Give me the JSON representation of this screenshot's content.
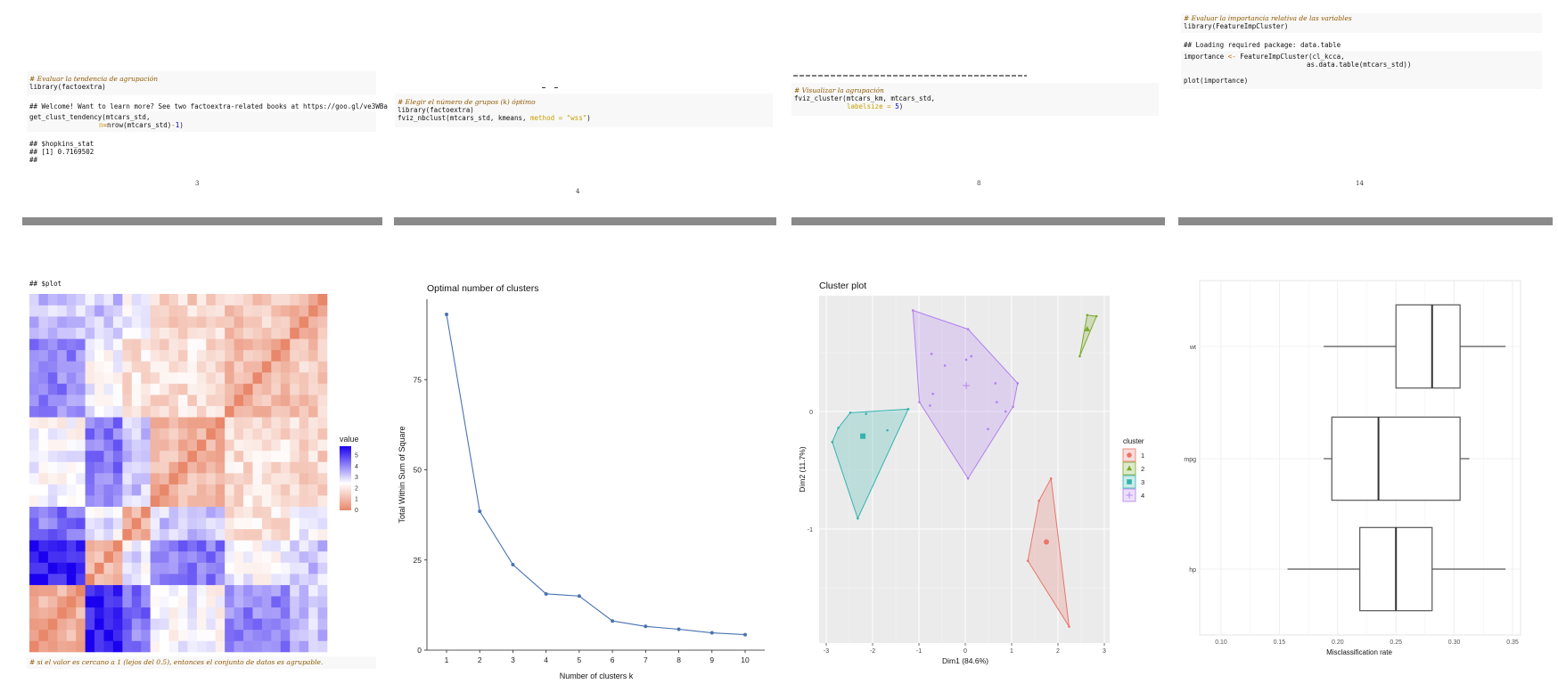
{
  "pages": [
    {
      "number": "3",
      "block1": {
        "comment": "# Evaluar la tendencia de agrupación",
        "line2": "library(factoextra)"
      },
      "output1": "## Welcome! Want to learn more? See two factoextra-related books at https://goo.gl/ve3WBa",
      "block2": {
        "line1": "get_clust_tendency(mtcars_std,",
        "arg": "n",
        "eq": "=",
        "rest": "nrow(mtcars_std)",
        "minus": "-",
        "num": "1",
        "close": ")"
      },
      "output2": [
        "## $hopkins_stat",
        "## [1] 0.7169502",
        "##"
      ],
      "plot_header": "## $plot",
      "caption": "# si el valor es cercano a 1 (lejos del 0.5), entonces el conjunto de datos es agrupable."
    },
    {
      "number": "4",
      "block": {
        "comment": "# Elegir el número de grupos (k) óptimo",
        "line2": "library(factoextra)",
        "line3a": "fviz_nbclust(mtcars_std, kmeans, ",
        "arg": "method = \"wss\"",
        "line3b": ")"
      }
    },
    {
      "number": "8",
      "block": {
        "comment": "# Visualizar la agrupación",
        "line2": "fviz_cluster(mtcars_km, mtcars_std,",
        "arg": "labelsize = ",
        "num": "5",
        "close": ")"
      }
    },
    {
      "number": "14",
      "block1": {
        "comment": "# Evaluar la importancia relativa de las variables",
        "line2": "library(FeatureImpCluster)"
      },
      "output1": "## Loading required package: data.table",
      "block2": {
        "line1a": "importance ",
        "op": "<-",
        "line1b": " FeatureImpCluster(cl_kcca,",
        "line2": "as.data.table(mtcars_std))",
        "line3": "plot(importance)"
      }
    }
  ],
  "chart_data": [
    {
      "type": "heatmap",
      "title": "",
      "legend_title": "value",
      "legend_ticks": [
        "0",
        "1",
        "2",
        "3",
        "4",
        "5"
      ],
      "range": [
        0,
        5.5
      ],
      "colors": {
        "low": "#e8876a",
        "mid": "#ffffff",
        "high": "#1a00ee"
      },
      "group_sizes": [
        6,
        4,
        3,
        8,
        7,
        4
      ],
      "block_means": [
        [
          0.9,
          5.2,
          4.0,
          2.3,
          3.8,
          3.0
        ],
        [
          5.2,
          0.9,
          2.6,
          4.0,
          2.4,
          3.0
        ],
        [
          4.0,
          2.6,
          0.9,
          3.0,
          1.8,
          2.3
        ],
        [
          2.3,
          4.0,
          3.0,
          0.9,
          1.7,
          1.5
        ],
        [
          3.8,
          2.4,
          1.8,
          1.7,
          0.9,
          1.3
        ],
        [
          3.0,
          3.0,
          2.3,
          1.5,
          1.3,
          0.9
        ]
      ]
    },
    {
      "type": "line",
      "title": "Optimal number of clusters",
      "xlabel": "Number of clusters k",
      "ylabel": "Total Within Sum of Square",
      "x": [
        1,
        2,
        3,
        4,
        5,
        6,
        7,
        8,
        9,
        10
      ],
      "values": [
        93.1,
        38.5,
        23.7,
        15.6,
        15.0,
        8.1,
        6.6,
        5.8,
        4.8,
        4.3
      ],
      "xticks": [
        "1",
        "2",
        "3",
        "4",
        "5",
        "6",
        "7",
        "8",
        "9",
        "10"
      ],
      "yticks": [
        "0",
        "25",
        "50",
        "75"
      ],
      "ylim": [
        0,
        95
      ],
      "color": "#4a72b0"
    },
    {
      "type": "scatter",
      "title": "Cluster plot",
      "xlabel": "Dim1 (84.6%)",
      "ylabel": "Dim2 (11.7%)",
      "xticks": [
        "-3",
        "-2",
        "-1",
        "0",
        "1",
        "2",
        "3"
      ],
      "yticks": [
        "0",
        "-1"
      ],
      "xlim": [
        -3.1,
        3.15
      ],
      "ylim": [
        -1.97,
        0.98
      ],
      "legend_title": "cluster",
      "legend_position": "right",
      "clusters": [
        {
          "name": "1",
          "color": "#e8766b",
          "shape": "circle",
          "hull": [
            [
              1.85,
              -0.57
            ],
            [
              2.24,
              -1.83
            ],
            [
              1.35,
              -1.27
            ],
            [
              1.59,
              -0.76
            ]
          ],
          "points": [
            [
              1.85,
              -0.57
            ],
            [
              1.59,
              -0.76
            ],
            [
              1.35,
              -1.27
            ],
            [
              2.24,
              -1.83
            ]
          ],
          "center": [
            1.75,
            -1.11
          ]
        },
        {
          "name": "2",
          "color": "#7caa2d",
          "shape": "triangle",
          "hull": [
            [
              2.63,
              0.82
            ],
            [
              2.83,
              0.81
            ],
            [
              2.47,
              0.47
            ]
          ],
          "points": [
            [
              2.63,
              0.82
            ],
            [
              2.83,
              0.81
            ],
            [
              2.47,
              0.47
            ]
          ],
          "center": [
            2.63,
            0.7
          ]
        },
        {
          "name": "3",
          "color": "#35b2ad",
          "shape": "square",
          "hull": [
            [
              -2.48,
              -0.01
            ],
            [
              -1.23,
              0.02
            ],
            [
              -2.32,
              -0.91
            ],
            [
              -2.87,
              -0.26
            ],
            [
              -2.74,
              -0.14
            ]
          ],
          "points": [
            [
              -2.48,
              -0.01
            ],
            [
              -2.14,
              -0.02
            ],
            [
              -1.23,
              0.02
            ],
            [
              -1.68,
              -0.16
            ],
            [
              -2.32,
              -0.91
            ],
            [
              -2.87,
              -0.26
            ],
            [
              -2.74,
              -0.14
            ]
          ],
          "center": [
            -2.21,
            -0.21
          ]
        },
        {
          "name": "4",
          "color": "#b27ff0",
          "shape": "cross",
          "hull": [
            [
              -1.13,
              0.86
            ],
            [
              0.06,
              0.7
            ],
            [
              1.13,
              0.24
            ],
            [
              1.03,
              0.04
            ],
            [
              0.06,
              -0.57
            ],
            [
              -0.99,
              0.08
            ]
          ],
          "points": [
            [
              -1.13,
              0.86
            ],
            [
              0.06,
              0.7
            ],
            [
              1.13,
              0.24
            ],
            [
              1.03,
              0.04
            ],
            [
              0.06,
              -0.57
            ],
            [
              -0.99,
              0.08
            ],
            [
              -0.73,
              0.49
            ],
            [
              -0.44,
              0.39
            ],
            [
              0.02,
              0.44
            ],
            [
              0.13,
              0.47
            ],
            [
              0.65,
              0.24
            ],
            [
              0.68,
              0.08
            ],
            [
              0.87,
              0.0
            ],
            [
              -0.76,
              0.05
            ],
            [
              -0.7,
              0.15
            ],
            [
              0.49,
              -0.15
            ]
          ],
          "center": [
            0.02,
            0.22
          ]
        }
      ]
    },
    {
      "type": "boxplot",
      "title": "",
      "xlabel": "Misclassification rate",
      "ylabel": "",
      "xticks": [
        "0.10",
        "0.15",
        "0.20",
        "0.25",
        "0.30",
        "0.35"
      ],
      "xlim": [
        0.08,
        0.352
      ],
      "categories": [
        "wt",
        "mpg",
        "hp"
      ],
      "boxes": [
        {
          "name": "wt",
          "min": 0.188,
          "q1": 0.25,
          "median": 0.281,
          "q3": 0.305,
          "max": 0.344
        },
        {
          "name": "mpg",
          "min": 0.188,
          "q1": 0.195,
          "median": 0.235,
          "q3": 0.305,
          "max": 0.313
        },
        {
          "name": "hp",
          "min": 0.157,
          "q1": 0.219,
          "median": 0.25,
          "q3": 0.281,
          "max": 0.344
        }
      ]
    }
  ]
}
